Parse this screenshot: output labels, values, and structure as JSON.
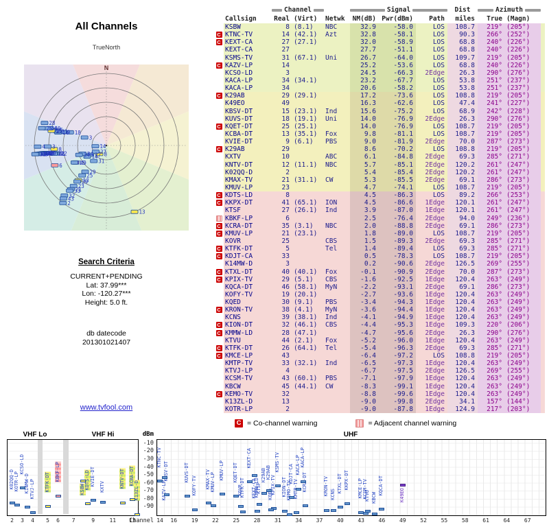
{
  "left_panel": {
    "title": "All Channels",
    "north_label": "TrueNorth",
    "compass_n": "N",
    "search_criteria": {
      "heading": "Search Criteria",
      "lines": [
        "CURRENT+PENDING",
        "Lat: 37.99***",
        "Lon: -120.27***",
        "Height: 5.0 ft."
      ],
      "datecode_label": "db datecode",
      "datecode": "201301021407"
    },
    "link": "www.tvfool.com"
  },
  "table": {
    "group_headers": {
      "channel": "Channel",
      "signal": "Signal",
      "dist": "Dist",
      "azimuth": "Azimuth"
    },
    "columns": [
      "Callsign",
      "Real",
      "(Virt)",
      "Netwk",
      "NM(dB)",
      "Pwr(dBm)",
      "Path",
      "miles",
      "True",
      "(Magn)"
    ],
    "row_fields": [
      "callsign",
      "real_channel",
      "virt_channel",
      "netwk",
      "nm_db",
      "pwr_dbm",
      "path",
      "miles",
      "azimuth_true",
      "azimuth_magn",
      "warning",
      "highlight"
    ],
    "rows": [
      [
        "KSBW",
        "8",
        "(8.1)",
        "NBC",
        "32.9",
        "-58.0",
        "LOS",
        "108.7",
        "219°",
        "(205°)",
        "",
        "g"
      ],
      [
        "KTNC-TV",
        "14",
        "(42.1)",
        "Azt",
        "32.8",
        "-58.1",
        "LOS",
        "90.3",
        "266°",
        "(252°)",
        "C",
        ""
      ],
      [
        "KEXT-CA",
        "27",
        "(27.1)",
        "",
        "32.0",
        "-58.9",
        "LOS",
        "68.8",
        "240°",
        "(226°)",
        "C",
        ""
      ],
      [
        "KEXT-CA",
        "27",
        "",
        "",
        "27.7",
        "-51.1",
        "LOS",
        "68.8",
        "240°",
        "(226°)",
        "",
        ""
      ],
      [
        "KSMS-TV",
        "31",
        "(67.1)",
        "Uni",
        "26.7",
        "-64.0",
        "LOS",
        "109.7",
        "219°",
        "(205°)",
        "",
        ""
      ],
      [
        "KAZV-LP",
        "14",
        "",
        "",
        "25.2",
        "-53.6",
        "LOS",
        "68.8",
        "240°",
        "(226°)",
        "C",
        ""
      ],
      [
        "KCSO-LD",
        "3",
        "",
        "",
        "24.5",
        "-66.3",
        "2Edge",
        "26.3",
        "290°",
        "(276°)",
        "",
        ""
      ],
      [
        "KACA-LP",
        "34",
        "(34.1)",
        "",
        "23.2",
        "-67.7",
        "LOS",
        "53.8",
        "251°",
        "(237°)",
        "",
        ""
      ],
      [
        "KACA-LP",
        "34",
        "",
        "",
        "20.6",
        "-58.2",
        "LOS",
        "53.8",
        "251°",
        "(237°)",
        "",
        ""
      ],
      [
        "K29AB",
        "29",
        "(29.1)",
        "",
        "17.2",
        "-73.6",
        "LOS",
        "108.8",
        "219°",
        "(205°)",
        "C",
        ""
      ],
      [
        "K49EO",
        "49",
        "",
        "",
        "16.3",
        "-62.6",
        "LOS",
        "47.4",
        "241°",
        "(227°)",
        "",
        "v"
      ],
      [
        "KBSV-DT",
        "15",
        "(23.1)",
        "Ind",
        "15.6",
        "-75.2",
        "LOS",
        "68.9",
        "242°",
        "(228°)",
        "",
        ""
      ],
      [
        "KUVS-DT",
        "18",
        "(19.1)",
        "Uni",
        "14.0",
        "-76.9",
        "2Edge",
        "26.3",
        "290°",
        "(276°)",
        "",
        ""
      ],
      [
        "KQET-DT",
        "25",
        "(25.1)",
        "",
        "14.0",
        "-76.9",
        "LOS",
        "108.7",
        "219°",
        "(205°)",
        "C",
        ""
      ],
      [
        "KCBA-DT",
        "13",
        "(35.1)",
        "Fox",
        "9.8",
        "-81.1",
        "LOS",
        "108.7",
        "219°",
        "(205°)",
        "",
        "g"
      ],
      [
        "KVIE-DT",
        "9",
        "(6.1)",
        "PBS",
        "9.0",
        "-81.9",
        "2Edge",
        "70.0",
        "287°",
        "(273°)",
        "",
        ""
      ],
      [
        "K29AB",
        "29",
        "",
        "",
        "8.6",
        "-70.2",
        "LOS",
        "108.8",
        "219°",
        "(205°)",
        "C",
        ""
      ],
      [
        "KXTV",
        "10",
        "",
        "ABC",
        "6.1",
        "-84.8",
        "2Edge",
        "69.3",
        "285°",
        "(271°)",
        "",
        ""
      ],
      [
        "KNTV-DT",
        "12",
        "(11.1)",
        "NBC",
        "5.7",
        "-85.1",
        "2Edge",
        "120.2",
        "261°",
        "(247°)",
        "",
        "g"
      ],
      [
        "K02QQ-D",
        "2",
        "",
        "",
        "5.4",
        "-85.4",
        "2Edge",
        "120.2",
        "261°",
        "(247°)",
        "",
        ""
      ],
      [
        "KMAX-TV",
        "21",
        "(31.1)",
        "CW",
        "5.3",
        "-85.5",
        "2Edge",
        "69.1",
        "286°",
        "(273°)",
        "",
        ""
      ],
      [
        "KMUV-LP",
        "23",
        "",
        "",
        "4.7",
        "-74.1",
        "LOS",
        "108.7",
        "219°",
        "(205°)",
        "",
        ""
      ],
      [
        "KDTS-LD",
        "8",
        "",
        "",
        "4.5",
        "-86.3",
        "LOS",
        "89.2",
        "266°",
        "(253°)",
        "C",
        "g"
      ],
      [
        "KKPX-DT",
        "41",
        "(65.1)",
        "ION",
        "4.5",
        "-86.6",
        "1Edge",
        "120.1",
        "261°",
        "(247°)",
        "C",
        ""
      ],
      [
        "KTSF",
        "27",
        "(26.1)",
        "Ind",
        "3.9",
        "-87.0",
        "1Edge",
        "120.1",
        "261°",
        "(247°)",
        "",
        ""
      ],
      [
        "KBKF-LP",
        "6",
        "",
        "",
        "2.5",
        "-76.4",
        "2Edge",
        "94.0",
        "249°",
        "(236°)",
        "A",
        "p"
      ],
      [
        "KCRA-DT",
        "35",
        "(3.1)",
        "NBC",
        "2.0",
        "-88.8",
        "2Edge",
        "69.1",
        "286°",
        "(273°)",
        "C",
        ""
      ],
      [
        "KMUV-LP",
        "21",
        "(23.1)",
        "",
        "1.8",
        "-89.0",
        "LOS",
        "108.7",
        "219°",
        "(205°)",
        "C",
        ""
      ],
      [
        "KOVR",
        "25",
        "",
        "CBS",
        "1.5",
        "-89.3",
        "2Edge",
        "69.3",
        "285°",
        "(271°)",
        "",
        ""
      ],
      [
        "KTFK-DT",
        "5",
        "",
        "Tel",
        "1.4",
        "-89.4",
        "LOS",
        "69.3",
        "285°",
        "(271°)",
        "C",
        "g"
      ],
      [
        "KDJT-CA",
        "33",
        "",
        "",
        "0.5",
        "-78.3",
        "LOS",
        "108.7",
        "219°",
        "(205°)",
        "C",
        ""
      ],
      [
        "K14MW-D",
        "3",
        "",
        "",
        "0.2",
        "-90.6",
        "2Edge",
        "126.5",
        "269°",
        "(255°)",
        "",
        ""
      ],
      [
        "KTXL-DT",
        "40",
        "(40.1)",
        "Fox",
        "-0.1",
        "-90.9",
        "2Edge",
        "70.0",
        "287°",
        "(273°)",
        "C",
        ""
      ],
      [
        "KPIX-TV",
        "29",
        "(5.1)",
        "CBS",
        "-1.6",
        "-92.5",
        "1Edge",
        "120.4",
        "263°",
        "(249°)",
        "C",
        ""
      ],
      [
        "KQCA-DT",
        "46",
        "(58.1)",
        "MyN",
        "-2.2",
        "-93.1",
        "2Edge",
        "69.1",
        "286°",
        "(273°)",
        "",
        ""
      ],
      [
        "KOFY-TV",
        "19",
        "(20.1)",
        "",
        "-2.7",
        "-93.6",
        "1Edge",
        "120.4",
        "263°",
        "(249°)",
        "",
        ""
      ],
      [
        "KQED",
        "30",
        "(9.1)",
        "PBS",
        "-3.4",
        "-94.3",
        "1Edge",
        "120.4",
        "263°",
        "(249°)",
        "",
        ""
      ],
      [
        "KRON-TV",
        "38",
        "(4.1)",
        "MyN",
        "-3.6",
        "-94.4",
        "1Edge",
        "120.4",
        "263°",
        "(249°)",
        "C",
        ""
      ],
      [
        "KCNS",
        "39",
        "(38.1)",
        "Ind",
        "-4.1",
        "-94.9",
        "1Edge",
        "120.4",
        "263°",
        "(249°)",
        "",
        ""
      ],
      [
        "KION-DT",
        "32",
        "(46.1)",
        "CBS",
        "-4.4",
        "-95.3",
        "1Edge",
        "109.3",
        "220°",
        "(206°)",
        "C",
        ""
      ],
      [
        "KMMW-LD",
        "28",
        "(47.1)",
        "",
        "-4.7",
        "-95.6",
        "2Edge",
        "26.3",
        "290°",
        "(276°)",
        "C",
        ""
      ],
      [
        "KTVU",
        "44",
        "(2.1)",
        "Fox",
        "-5.2",
        "-96.0",
        "1Edge",
        "120.4",
        "263°",
        "(249°)",
        "",
        ""
      ],
      [
        "KTFK-DT",
        "26",
        "(64.1)",
        "Tel",
        "-5.4",
        "-96.3",
        "2Edge",
        "69.3",
        "285°",
        "(271°)",
        "C",
        ""
      ],
      [
        "KMCE-LP",
        "43",
        "",
        "",
        "-6.4",
        "-97.2",
        "LOS",
        "108.8",
        "219°",
        "(205°)",
        "C",
        ""
      ],
      [
        "KMTP-TV",
        "33",
        "(32.1)",
        "Ind",
        "-6.5",
        "-97.3",
        "1Edge",
        "120.4",
        "263°",
        "(249°)",
        "",
        ""
      ],
      [
        "KTVJ-LP",
        "4",
        "",
        "",
        "-6.7",
        "-97.5",
        "2Edge",
        "126.5",
        "269°",
        "(255°)",
        "",
        ""
      ],
      [
        "KCSM-TV",
        "43",
        "(60.1)",
        "PBS",
        "-7.1",
        "-97.9",
        "1Edge",
        "120.4",
        "263°",
        "(249°)",
        "",
        ""
      ],
      [
        "KBCW",
        "45",
        "(44.1)",
        "CW",
        "-8.3",
        "-99.1",
        "1Edge",
        "120.4",
        "263°",
        "(249°)",
        "",
        ""
      ],
      [
        "KEMO-TV",
        "32",
        "",
        "",
        "-8.8",
        "-99.6",
        "1Edge",
        "120.4",
        "263°",
        "(249°)",
        "C",
        ""
      ],
      [
        "K13ZL-D",
        "13",
        "",
        "",
        "-9.0",
        "-99.8",
        "2Edge",
        "34.1",
        "157°",
        "(144°)",
        "",
        "g"
      ],
      [
        "KOTR-LP",
        "2",
        "",
        "",
        "-9.0",
        "-87.8",
        "1Edge",
        "124.9",
        "217°",
        "(203°)",
        "",
        ""
      ]
    ]
  },
  "legend": {
    "co_icon": "C",
    "co": "= Co-channel warning",
    "adj": "= Adjacent channel warning"
  },
  "spectrum": {
    "vhf_lo_label": "VHF Lo",
    "vhf_hi_label": "VHF Hi",
    "uhf_label": "UHF",
    "dbm_label": "dBm",
    "channel_label": "Channel",
    "y_ticks": [
      -10,
      -20,
      -30,
      -40,
      -50,
      -60,
      -70,
      -80,
      -90
    ],
    "vhf_lo_ticks": [
      2,
      3,
      4,
      5,
      6
    ],
    "vhf_hi_ticks": [
      7,
      9,
      11,
      13
    ],
    "uhf_ticks": [
      14,
      16,
      19,
      22,
      25,
      28,
      31,
      34,
      37,
      40,
      43,
      46,
      49,
      52,
      55,
      58,
      61,
      64,
      67
    ]
  },
  "colors": {
    "accent_blue": "#1a1a8c",
    "warning_red": "#cc0000",
    "row_strong": "#ecf2c2",
    "row_mid": "#f3f0bd",
    "row_weak": "#f6d8d6",
    "azimuth_purple": "#8b008b"
  },
  "chart_data": [
    {
      "type": "scatter",
      "title": "All Channels",
      "projection": "polar",
      "angle_field": "azimuth_true",
      "radius_field": "nm_db",
      "radius_note": "stronger NM(dB) plotted nearer center",
      "label_field": "real_channel",
      "data_ref": "table.rows"
    },
    {
      "type": "scatter",
      "title": "Channel spectrum (VHF Lo / VHF Hi / UHF)",
      "xlabel": "Channel",
      "ylabel": "dBm",
      "ylim": [
        -100,
        -5
      ],
      "x_field": "real_channel",
      "y_field": "pwr_dbm",
      "bands": [
        "VHF Lo: 2-6",
        "VHF Hi: 7-13",
        "UHF: 14-69"
      ],
      "data_ref": "table.rows"
    }
  ]
}
